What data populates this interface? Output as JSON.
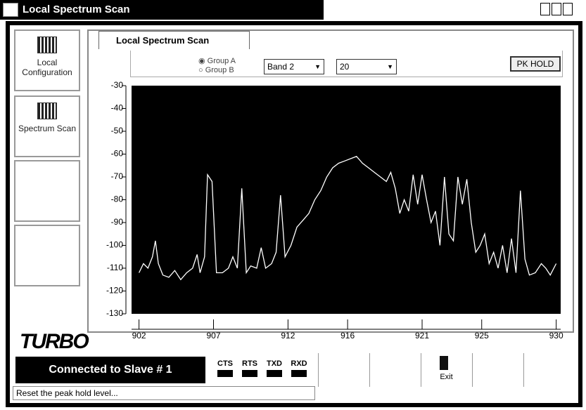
{
  "window": {
    "title": "Local Spectrum Scan"
  },
  "sidebar": [
    "Local Configuration",
    "Spectrum Scan"
  ],
  "logo": "TURBO",
  "tab": "Local Spectrum Scan",
  "controls": {
    "radio": [
      "Group A",
      "Group B"
    ],
    "band": "Band 2",
    "count": "20",
    "button": "PK HOLD"
  },
  "chart_data": {
    "type": "line",
    "x": [
      902,
      902.3,
      902.6,
      902.9,
      903.1,
      903.3,
      903.6,
      904,
      904.4,
      904.8,
      905.2,
      905.6,
      905.9,
      906.1,
      906.4,
      906.6,
      906.9,
      907.2,
      907.6,
      908,
      908.3,
      908.6,
      908.9,
      909.2,
      909.5,
      909.9,
      910.2,
      910.5,
      910.9,
      911.2,
      911.5,
      911.8,
      912.2,
      912.6,
      913,
      913.4,
      913.8,
      914.2,
      914.6,
      915,
      915.4,
      915.8,
      916.2,
      916.6,
      917,
      917.4,
      917.8,
      918.2,
      918.6,
      918.9,
      919.2,
      919.5,
      919.8,
      920.1,
      920.4,
      920.7,
      921,
      921.3,
      921.6,
      921.9,
      922.2,
      922.5,
      922.8,
      923.1,
      923.4,
      923.7,
      924,
      924.3,
      924.6,
      924.9,
      925.2,
      925.5,
      925.8,
      926.1,
      926.4,
      926.7,
      927,
      927.3,
      927.6,
      927.9,
      928.2,
      928.6,
      929,
      929.3,
      929.6,
      930
    ],
    "series": [
      {
        "color": "#ffffff",
        "values": [
          -112,
          -108,
          -110,
          -105,
          -98,
          -108,
          -113,
          -114,
          -111,
          -115,
          -112,
          -110,
          -104,
          -112,
          -105,
          -69,
          -72,
          -112,
          -112,
          -110,
          -105,
          -110,
          -75,
          -112,
          -109,
          -110,
          -101,
          -110,
          -108,
          -103,
          -78,
          -105,
          -100,
          -92,
          -89,
          -86,
          -80,
          -76,
          -70,
          -66,
          -64,
          -63,
          -62,
          -61,
          -64,
          -66,
          -68,
          -70,
          -72,
          -68,
          -75,
          -86,
          -80,
          -85,
          -69,
          -82,
          -69,
          -80,
          -90,
          -85,
          -100,
          -70,
          -95,
          -98,
          -70,
          -82,
          -71,
          -90,
          -103,
          -100,
          -95,
          -108,
          -103,
          -110,
          -100,
          -112,
          -97,
          -112,
          -76,
          -106,
          -113,
          -112,
          -108,
          -110,
          -113,
          -108
        ]
      }
    ],
    "xlim": [
      901.5,
      930.3
    ],
    "ylim": [
      -30,
      -130
    ],
    "xticks": [
      902,
      907,
      912,
      916,
      921,
      925,
      930
    ],
    "yticks": [
      -30,
      -40,
      -50,
      -60,
      -70,
      -80,
      -90,
      -100,
      -110,
      -120,
      -130
    ],
    "background": "#000000"
  },
  "status": {
    "connection": "Connected to Slave # 1",
    "indicators": [
      "CTS",
      "RTS",
      "TXD",
      "RXD"
    ],
    "exit": "Exit",
    "message": "Reset the peak hold level..."
  }
}
